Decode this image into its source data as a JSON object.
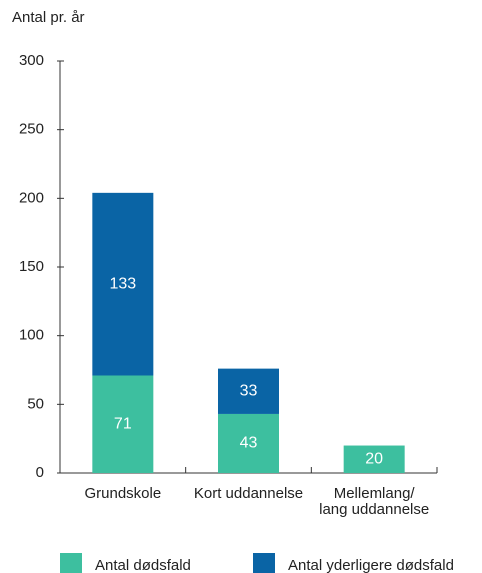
{
  "chart_data": {
    "type": "stacked_bar",
    "y_label": "Antal pr. år",
    "categories": [
      "Grundskole",
      "Kort uddannelse",
      "Mellemlang/\nlang uddannelse"
    ],
    "series": [
      {
        "name": "Antal dødsfald",
        "color": "#3dbf9f",
        "values": [
          71,
          43,
          20
        ]
      },
      {
        "name": "Antal yderligere dødsfald",
        "color": "#0a64a5",
        "values": [
          133,
          33,
          null
        ]
      }
    ],
    "ylim": [
      0,
      300
    ],
    "yticks": [
      0,
      50,
      100,
      150,
      200,
      250,
      300
    ],
    "grid": false,
    "legend": "bottom"
  }
}
